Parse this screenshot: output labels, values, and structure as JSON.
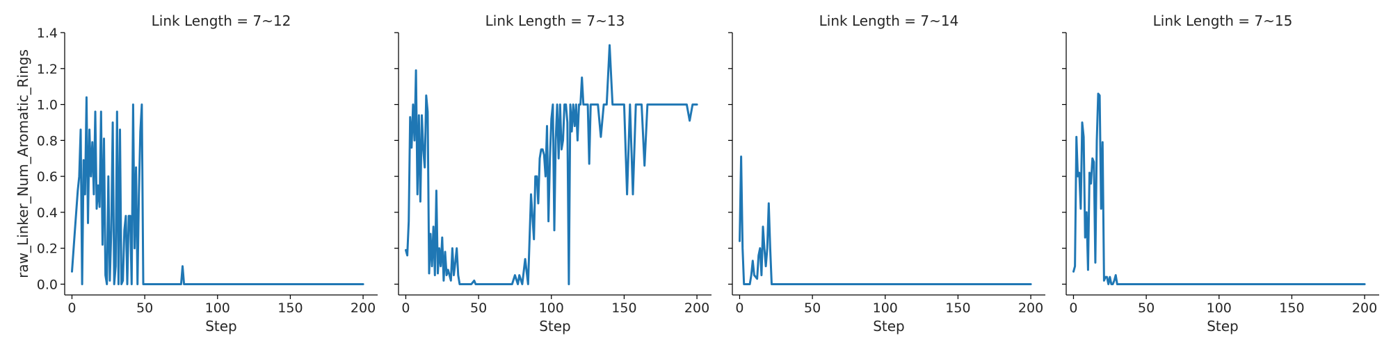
{
  "colors": {
    "line": "#1f77b4",
    "axis": "#000000",
    "text": "#262626"
  },
  "chart_data": [
    {
      "type": "line",
      "title": "Link Length = 7~12",
      "xlabel": "Step",
      "ylabel": "raw_Linker_Num_Aromatic_Rings",
      "xlim": [
        -5,
        210
      ],
      "ylim": [
        -0.06,
        1.4
      ],
      "xticks": [
        0,
        50,
        100,
        150,
        200
      ],
      "yticks": [
        0.0,
        0.2,
        0.4,
        0.6,
        0.8,
        1.0,
        1.2,
        1.4
      ],
      "grid": false,
      "x": [
        0,
        2,
        4,
        5,
        6,
        7,
        8,
        9,
        10,
        11,
        12,
        13,
        14,
        15,
        16,
        17,
        18,
        19,
        20,
        21,
        22,
        23,
        24,
        25,
        26,
        27,
        28,
        29,
        30,
        31,
        32,
        33,
        34,
        35,
        36,
        37,
        38,
        39,
        40,
        41,
        42,
        43,
        44,
        45,
        46,
        47,
        48,
        49,
        50,
        51,
        52,
        53,
        54,
        60,
        70,
        75,
        76,
        77,
        78,
        80,
        100,
        150,
        200
      ],
      "values": [
        0.07,
        0.3,
        0.52,
        0.6,
        0.86,
        0.0,
        0.69,
        0.5,
        1.04,
        0.34,
        0.86,
        0.6,
        0.79,
        0.5,
        0.96,
        0.42,
        0.55,
        0.43,
        0.96,
        0.22,
        0.81,
        0.05,
        0.0,
        0.6,
        0.02,
        0.3,
        0.9,
        0.0,
        0.1,
        0.96,
        0.0,
        0.86,
        0.0,
        0.02,
        0.3,
        0.38,
        0.0,
        0.38,
        0.38,
        0.0,
        1.0,
        0.2,
        0.65,
        0.0,
        0.5,
        0.85,
        1.0,
        0.0,
        0.0,
        0.0,
        0.0,
        0.0,
        0.0,
        0.0,
        0.0,
        0.0,
        0.1,
        0.0,
        0.0,
        0.0,
        0.0,
        0.0,
        0.0
      ]
    },
    {
      "type": "line",
      "title": "Link Length = 7~13",
      "xlabel": "Step",
      "ylabel": "",
      "xlim": [
        -5,
        210
      ],
      "ylim": [
        -0.06,
        1.4
      ],
      "xticks": [
        0,
        50,
        100,
        150,
        200
      ],
      "yticks": [
        0.0,
        0.2,
        0.4,
        0.6,
        0.8,
        1.0,
        1.2,
        1.4
      ],
      "grid": false,
      "x": [
        0,
        1,
        2,
        3,
        4,
        5,
        6,
        7,
        8,
        9,
        10,
        11,
        12,
        13,
        14,
        15,
        16,
        17,
        18,
        19,
        20,
        21,
        22,
        23,
        24,
        25,
        26,
        27,
        28,
        29,
        30,
        31,
        32,
        33,
        34,
        35,
        36,
        37,
        38,
        39,
        40,
        45,
        47,
        48,
        50,
        60,
        70,
        73,
        75,
        77,
        78,
        80,
        82,
        84,
        86,
        88,
        89,
        90,
        91,
        92,
        93,
        94,
        95,
        96,
        97,
        98,
        99,
        100,
        101,
        102,
        103,
        104,
        105,
        106,
        107,
        108,
        109,
        110,
        111,
        112,
        113,
        114,
        115,
        116,
        117,
        118,
        119,
        120,
        121,
        122,
        123,
        124,
        125,
        126,
        127,
        128,
        130,
        132,
        134,
        136,
        138,
        140,
        142,
        144,
        146,
        148,
        150,
        152,
        154,
        156,
        158,
        160,
        162,
        164,
        166,
        168,
        170,
        172,
        174,
        176,
        178,
        180,
        185,
        190,
        193,
        195,
        197,
        200
      ],
      "values": [
        0.19,
        0.16,
        0.35,
        0.93,
        0.76,
        1.0,
        0.8,
        1.19,
        0.5,
        0.94,
        0.46,
        0.94,
        0.75,
        0.65,
        1.05,
        0.96,
        0.06,
        0.28,
        0.1,
        0.32,
        0.05,
        0.52,
        0.06,
        0.2,
        0.1,
        0.26,
        0.02,
        0.18,
        0.05,
        0.08,
        0.05,
        0.02,
        0.2,
        0.05,
        0.12,
        0.2,
        0.05,
        0.0,
        0.0,
        0.0,
        0.0,
        0.0,
        0.02,
        0.0,
        0.0,
        0.0,
        0.0,
        0.0,
        0.05,
        0.0,
        0.05,
        0.0,
        0.14,
        0.0,
        0.5,
        0.25,
        0.6,
        0.6,
        0.45,
        0.7,
        0.75,
        0.75,
        0.72,
        0.6,
        0.88,
        0.35,
        0.7,
        0.92,
        1.0,
        0.3,
        0.8,
        1.0,
        0.7,
        1.0,
        0.75,
        0.8,
        1.0,
        1.0,
        0.9,
        0.0,
        1.0,
        0.85,
        1.0,
        0.88,
        1.0,
        0.8,
        1.0,
        1.0,
        1.15,
        1.0,
        1.0,
        1.0,
        1.0,
        0.67,
        1.0,
        1.0,
        1.0,
        1.0,
        0.82,
        1.0,
        1.0,
        1.33,
        1.0,
        1.0,
        1.0,
        1.0,
        1.0,
        0.5,
        1.0,
        0.5,
        1.0,
        1.0,
        1.0,
        0.66,
        1.0,
        1.0,
        1.0,
        1.0,
        1.0,
        1.0,
        1.0,
        1.0,
        1.0,
        1.0,
        1.0,
        0.91,
        1.0,
        1.0
      ]
    },
    {
      "type": "line",
      "title": "Link Length = 7~14",
      "xlabel": "Step",
      "ylabel": "",
      "xlim": [
        -5,
        210
      ],
      "ylim": [
        -0.06,
        1.4
      ],
      "xticks": [
        0,
        50,
        100,
        150,
        200
      ],
      "yticks": [
        0.0,
        0.2,
        0.4,
        0.6,
        0.8,
        1.0,
        1.2,
        1.4
      ],
      "grid": false,
      "x": [
        0,
        1,
        2,
        3,
        4,
        5,
        6,
        7,
        8,
        9,
        10,
        11,
        12,
        13,
        14,
        15,
        16,
        17,
        18,
        19,
        20,
        21,
        22,
        23,
        30,
        50,
        100,
        150,
        200
      ],
      "values": [
        0.24,
        0.71,
        0.2,
        0.0,
        0.0,
        0.0,
        0.0,
        0.0,
        0.05,
        0.13,
        0.05,
        0.04,
        0.03,
        0.16,
        0.2,
        0.05,
        0.32,
        0.2,
        0.1,
        0.2,
        0.45,
        0.2,
        0.0,
        0.0,
        0.0,
        0.0,
        0.0,
        0.0,
        0.0
      ]
    },
    {
      "type": "line",
      "title": "Link Length = 7~15",
      "xlabel": "Step",
      "ylabel": "",
      "xlim": [
        -5,
        210
      ],
      "ylim": [
        -0.06,
        1.4
      ],
      "xticks": [
        0,
        50,
        100,
        150,
        200
      ],
      "yticks": [
        0.0,
        0.2,
        0.4,
        0.6,
        0.8,
        1.0,
        1.2,
        1.4
      ],
      "grid": false,
      "x": [
        0,
        1,
        2,
        3,
        4,
        5,
        6,
        7,
        8,
        9,
        10,
        11,
        12,
        13,
        14,
        15,
        16,
        17,
        18,
        19,
        20,
        21,
        22,
        23,
        24,
        25,
        26,
        27,
        28,
        29,
        30,
        31,
        32,
        40,
        50,
        100,
        150,
        200
      ],
      "values": [
        0.07,
        0.1,
        0.82,
        0.6,
        0.62,
        0.42,
        0.9,
        0.82,
        0.26,
        0.4,
        0.08,
        0.62,
        0.56,
        0.7,
        0.68,
        0.12,
        0.8,
        1.06,
        1.05,
        0.42,
        0.79,
        0.02,
        0.04,
        0.04,
        0.0,
        0.04,
        0.0,
        0.0,
        0.02,
        0.05,
        0.0,
        0.0,
        0.0,
        0.0,
        0.0,
        0.0,
        0.0,
        0.0
      ]
    }
  ]
}
